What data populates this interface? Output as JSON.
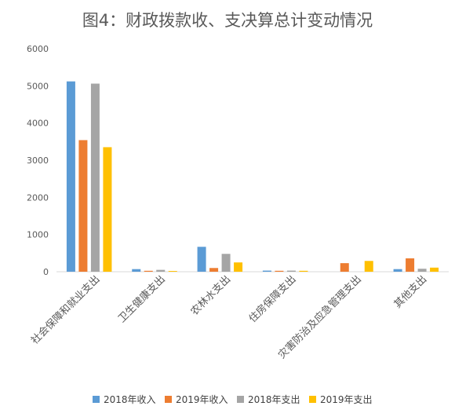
{
  "chart_data": {
    "type": "bar",
    "title": "图4：财政拨款收、支决算总计变动情况",
    "categories": [
      "社会保障和就业支出",
      "卫生健康支出",
      "农林水支出",
      "住房保障支出",
      "灾害防治及应急管理支出",
      "其他支出"
    ],
    "series": [
      {
        "name": "2018年收入",
        "color": "#5B9BD5",
        "values": [
          5120,
          70,
          670,
          30,
          0,
          70
        ]
      },
      {
        "name": "2019年收入",
        "color": "#ED7D31",
        "values": [
          3540,
          25,
          100,
          25,
          230,
          360
        ]
      },
      {
        "name": "2018年支出",
        "color": "#A5A5A5",
        "values": [
          5060,
          50,
          480,
          30,
          0,
          80
        ]
      },
      {
        "name": "2019年支出",
        "color": "#FFC000",
        "values": [
          3350,
          20,
          250,
          25,
          290,
          110
        ]
      }
    ],
    "ylim": [
      0,
      6000
    ],
    "yticks": [
      0,
      1000,
      2000,
      3000,
      4000,
      5000,
      6000
    ],
    "grid": false,
    "legend_position": "bottom"
  }
}
